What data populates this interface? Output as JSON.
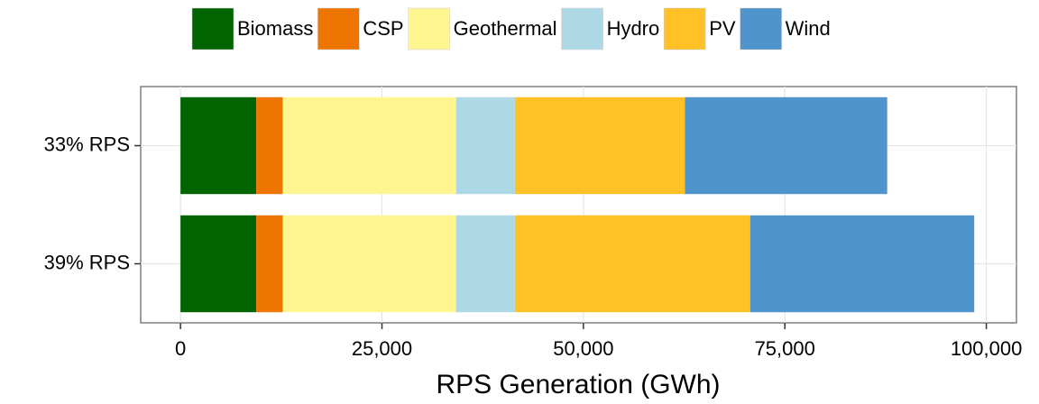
{
  "chart_data": {
    "type": "stacked-bar-horizontal",
    "x_label": "RPS Generation (GWh)",
    "categories": [
      "33% RPS",
      "39% RPS"
    ],
    "series": [
      {
        "name": "Biomass",
        "color": "#006400",
        "values": [
          9400,
          9400
        ]
      },
      {
        "name": "CSP",
        "color": "#ee7600",
        "values": [
          3300,
          3300
        ]
      },
      {
        "name": "Geothermal",
        "color": "#fff68f",
        "values": [
          21500,
          21500
        ]
      },
      {
        "name": "Hydro",
        "color": "#add8e6",
        "values": [
          7300,
          7300
        ]
      },
      {
        "name": "PV",
        "color": "#ffc125",
        "values": [
          21100,
          29200
        ]
      },
      {
        "name": "Wind",
        "color": "#4f94cd",
        "values": [
          25100,
          27800
        ]
      }
    ],
    "xlim": [
      -4940,
      103740
    ],
    "xticks": [
      0,
      {
        "value": 25000,
        "label": "25,000"
      },
      {
        "value": 50000,
        "label": "50,000"
      },
      {
        "value": 75000,
        "label": "75,000"
      },
      {
        "value": 100000,
        "label": "100,000"
      }
    ],
    "grid": true,
    "legend": "top"
  }
}
